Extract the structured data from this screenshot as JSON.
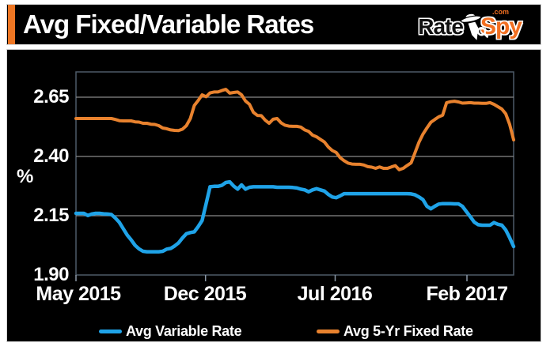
{
  "header": {
    "title": "Avg Fixed/Variable Rates",
    "logo": {
      "rate": "Rate",
      "spy": "Spy",
      "com": ".com"
    }
  },
  "chart_data": {
    "type": "line",
    "title": "Avg Fixed/Variable Rates",
    "ylabel": "%",
    "ylim": [
      1.9,
      2.757
    ],
    "grid": true,
    "legend_position": "bottom",
    "y_ticks": [
      "2.65",
      "2.40",
      "2.15",
      "1.90"
    ],
    "y_tick_values": [
      2.65,
      2.4,
      2.15,
      1.9
    ],
    "x_ticks": [
      "May 2015",
      "Dec 2015",
      "Jul 2016",
      "Feb 2017"
    ],
    "series": [
      {
        "name": "Avg Variable Rate",
        "color": "#1fa3e8",
        "values": [
          2.16,
          2.16,
          2.16,
          2.151,
          2.157,
          2.16,
          2.16,
          2.158,
          2.157,
          2.155,
          2.14,
          2.122,
          2.095,
          2.068,
          2.048,
          2.025,
          2.01,
          2.0,
          1.998,
          1.998,
          1.998,
          1.998,
          2.0,
          2.009,
          2.012,
          2.022,
          2.035,
          2.056,
          2.074,
          2.079,
          2.082,
          2.104,
          2.13,
          2.2,
          2.272,
          2.274,
          2.274,
          2.278,
          2.29,
          2.293,
          2.275,
          2.262,
          2.28,
          2.262,
          2.27,
          2.272,
          2.272,
          2.272,
          2.272,
          2.272,
          2.272,
          2.27,
          2.27,
          2.27,
          2.27,
          2.269,
          2.267,
          2.262,
          2.259,
          2.251,
          2.259,
          2.264,
          2.259,
          2.254,
          2.24,
          2.229,
          2.226,
          2.234,
          2.243,
          2.243,
          2.243,
          2.243,
          2.243,
          2.243,
          2.243,
          2.243,
          2.243,
          2.243,
          2.243,
          2.243,
          2.243,
          2.243,
          2.243,
          2.243,
          2.243,
          2.242,
          2.238,
          2.229,
          2.218,
          2.19,
          2.179,
          2.19,
          2.199,
          2.201,
          2.201,
          2.201,
          2.2,
          2.2,
          2.19,
          2.168,
          2.146,
          2.123,
          2.112,
          2.11,
          2.11,
          2.11,
          2.121,
          2.114,
          2.11,
          2.09,
          2.057,
          2.02
        ]
      },
      {
        "name": "Avg 5-Yr Fixed Rate",
        "color": "#e8822e",
        "values": [
          2.56,
          2.56,
          2.56,
          2.56,
          2.56,
          2.56,
          2.56,
          2.56,
          2.56,
          2.56,
          2.556,
          2.551,
          2.55,
          2.55,
          2.55,
          2.546,
          2.545,
          2.54,
          2.54,
          2.536,
          2.535,
          2.53,
          2.52,
          2.517,
          2.512,
          2.51,
          2.509,
          2.515,
          2.53,
          2.56,
          2.615,
          2.636,
          2.66,
          2.652,
          2.668,
          2.672,
          2.672,
          2.678,
          2.683,
          2.667,
          2.67,
          2.672,
          2.66,
          2.634,
          2.62,
          2.586,
          2.573,
          2.572,
          2.553,
          2.54,
          2.557,
          2.56,
          2.542,
          2.532,
          2.528,
          2.527,
          2.527,
          2.524,
          2.512,
          2.506,
          2.49,
          2.483,
          2.472,
          2.461,
          2.44,
          2.425,
          2.417,
          2.395,
          2.382,
          2.372,
          2.368,
          2.367,
          2.367,
          2.364,
          2.357,
          2.355,
          2.35,
          2.356,
          2.35,
          2.35,
          2.356,
          2.361,
          2.344,
          2.35,
          2.362,
          2.373,
          2.417,
          2.46,
          2.494,
          2.52,
          2.544,
          2.556,
          2.567,
          2.574,
          2.627,
          2.631,
          2.633,
          2.63,
          2.625,
          2.626,
          2.627,
          2.625,
          2.625,
          2.624,
          2.624,
          2.627,
          2.62,
          2.61,
          2.6,
          2.58,
          2.535,
          2.47
        ]
      }
    ],
    "colors": {
      "grid": "#8a8a8a",
      "frame": "#4d5a68",
      "background": "#000000",
      "text": "#ffffff"
    }
  }
}
